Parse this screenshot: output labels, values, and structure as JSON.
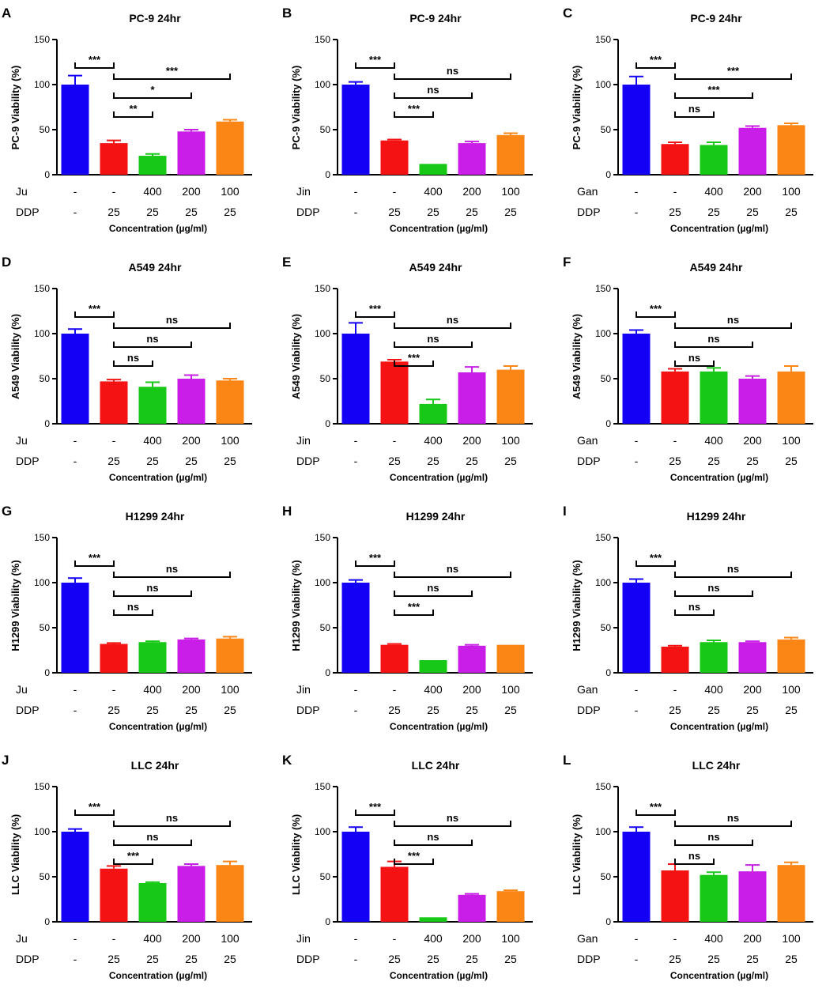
{
  "colors": {
    "bar1": "#1400f5",
    "bar2": "#f41212",
    "bar3": "#17c817",
    "bar4": "#c81ee8",
    "bar5": "#fb8515"
  },
  "chart_data": [
    {
      "panel": "A",
      "type": "bar",
      "title": "PC-9 24hr",
      "ylabel": "PC-9 Viability (%)",
      "xlabel": "Concentration (µg/ml)",
      "ylim": [
        0,
        150
      ],
      "yticks": [
        "0",
        "50",
        "100",
        "150"
      ],
      "drug": "Ju",
      "drug_values": [
        "-",
        "-",
        "400",
        "200",
        "100"
      ],
      "ddp": "DDP",
      "ddp_values": [
        "-",
        "25",
        "25",
        "25",
        "25"
      ],
      "values": [
        100,
        35,
        21,
        48,
        59
      ],
      "errors": [
        10,
        3,
        2,
        2,
        2
      ],
      "sig": [
        {
          "label": "***",
          "from": 0,
          "to": 1,
          "level": 0
        },
        {
          "label": "***",
          "from": 1,
          "to": 4,
          "level": 0
        },
        {
          "label": "*",
          "from": 1,
          "to": 3,
          "level": 1
        },
        {
          "label": "**",
          "from": 1,
          "to": 2,
          "level": 2
        }
      ]
    },
    {
      "panel": "B",
      "type": "bar",
      "title": "PC-9 24hr",
      "ylabel": "PC-9 Viability (%)",
      "xlabel": "Concentration (µg/ml)",
      "ylim": [
        0,
        150
      ],
      "yticks": [
        "0",
        "50",
        "100",
        "150"
      ],
      "drug": "Jin",
      "drug_values": [
        "-",
        "-",
        "400",
        "200",
        "100"
      ],
      "ddp": "DDP",
      "ddp_values": [
        "-",
        "25",
        "25",
        "25",
        "25"
      ],
      "values": [
        100,
        38,
        12,
        35,
        44
      ],
      "errors": [
        3,
        1,
        0,
        2,
        2
      ],
      "sig": [
        {
          "label": "***",
          "from": 0,
          "to": 1,
          "level": 0
        },
        {
          "label": "ns",
          "from": 1,
          "to": 4,
          "level": 0
        },
        {
          "label": "ns",
          "from": 1,
          "to": 3,
          "level": 1
        },
        {
          "label": "***",
          "from": 1,
          "to": 2,
          "level": 2
        }
      ]
    },
    {
      "panel": "C",
      "type": "bar",
      "title": "PC-9 24hr",
      "ylabel": "PC-9 Viability (%)",
      "xlabel": "Concentration (µg/ml)",
      "ylim": [
        0,
        150
      ],
      "yticks": [
        "0",
        "50",
        "100",
        "150"
      ],
      "drug": "Gan",
      "drug_values": [
        "-",
        "-",
        "400",
        "200",
        "100"
      ],
      "ddp": "DDP",
      "ddp_values": [
        "-",
        "25",
        "25",
        "25",
        "25"
      ],
      "values": [
        100,
        34,
        33,
        52,
        55
      ],
      "errors": [
        9,
        2,
        3,
        2,
        2
      ],
      "sig": [
        {
          "label": "***",
          "from": 0,
          "to": 1,
          "level": 0
        },
        {
          "label": "***",
          "from": 1,
          "to": 4,
          "level": 0
        },
        {
          "label": "***",
          "from": 1,
          "to": 3,
          "level": 1
        },
        {
          "label": "ns",
          "from": 1,
          "to": 2,
          "level": 2
        }
      ]
    },
    {
      "panel": "D",
      "type": "bar",
      "title": "A549 24hr",
      "ylabel": "A549 Viability (%)",
      "xlabel": "Concentration (µg/ml)",
      "ylim": [
        0,
        150
      ],
      "yticks": [
        "0",
        "50",
        "100",
        "150"
      ],
      "drug": "Ju",
      "drug_values": [
        "-",
        "-",
        "400",
        "200",
        "100"
      ],
      "ddp": "DDP",
      "ddp_values": [
        "-",
        "25",
        "25",
        "25",
        "25"
      ],
      "values": [
        100,
        47,
        41,
        50,
        48
      ],
      "errors": [
        5,
        2,
        5,
        4,
        2
      ],
      "sig": [
        {
          "label": "***",
          "from": 0,
          "to": 1,
          "level": 0
        },
        {
          "label": "ns",
          "from": 1,
          "to": 4,
          "level": 0
        },
        {
          "label": "ns",
          "from": 1,
          "to": 3,
          "level": 1
        },
        {
          "label": "ns",
          "from": 1,
          "to": 2,
          "level": 2
        }
      ]
    },
    {
      "panel": "E",
      "type": "bar",
      "title": "A549 24hr",
      "ylabel": "A549 Viability (%)",
      "xlabel": "Concentration (µg/ml)",
      "ylim": [
        0,
        150
      ],
      "yticks": [
        "0",
        "50",
        "100",
        "150"
      ],
      "drug": "Jin",
      "drug_values": [
        "-",
        "-",
        "400",
        "200",
        "100"
      ],
      "ddp": "DDP",
      "ddp_values": [
        "-",
        "25",
        "25",
        "25",
        "25"
      ],
      "values": [
        100,
        69,
        22,
        57,
        60
      ],
      "errors": [
        12,
        2,
        5,
        6,
        4
      ],
      "sig": [
        {
          "label": "***",
          "from": 0,
          "to": 1,
          "level": 0
        },
        {
          "label": "ns",
          "from": 1,
          "to": 4,
          "level": 0
        },
        {
          "label": "ns",
          "from": 1,
          "to": 3,
          "level": 1
        },
        {
          "label": "***",
          "from": 1,
          "to": 2,
          "level": 2
        }
      ]
    },
    {
      "panel": "F",
      "type": "bar",
      "title": "A549 24hr",
      "ylabel": "A549 Viability (%)",
      "xlabel": "Concentration (µg/ml)",
      "ylim": [
        0,
        150
      ],
      "yticks": [
        "0",
        "50",
        "100",
        "150"
      ],
      "drug": "Gan",
      "drug_values": [
        "-",
        "-",
        "400",
        "200",
        "100"
      ],
      "ddp": "DDP",
      "ddp_values": [
        "-",
        "25",
        "25",
        "25",
        "25"
      ],
      "values": [
        100,
        58,
        58,
        50,
        58
      ],
      "errors": [
        4,
        3,
        4,
        3,
        6
      ],
      "sig": [
        {
          "label": "***",
          "from": 0,
          "to": 1,
          "level": 0
        },
        {
          "label": "ns",
          "from": 1,
          "to": 4,
          "level": 0
        },
        {
          "label": "ns",
          "from": 1,
          "to": 3,
          "level": 1
        },
        {
          "label": "ns",
          "from": 1,
          "to": 2,
          "level": 2
        }
      ]
    },
    {
      "panel": "G",
      "type": "bar",
      "title": "H1299 24hr",
      "ylabel": "H1299 Viability (%)",
      "xlabel": "Concentration (µg/ml)",
      "ylim": [
        0,
        150
      ],
      "yticks": [
        "0",
        "50",
        "100",
        "150"
      ],
      "drug": "Ju",
      "drug_values": [
        "-",
        "-",
        "400",
        "200",
        "100"
      ],
      "ddp": "DDP",
      "ddp_values": [
        "-",
        "25",
        "25",
        "25",
        "25"
      ],
      "values": [
        100,
        32,
        34,
        37,
        38
      ],
      "errors": [
        5,
        1,
        1,
        1,
        2
      ],
      "sig": [
        {
          "label": "***",
          "from": 0,
          "to": 1,
          "level": 0
        },
        {
          "label": "ns",
          "from": 1,
          "to": 4,
          "level": 0
        },
        {
          "label": "ns",
          "from": 1,
          "to": 3,
          "level": 1
        },
        {
          "label": "ns",
          "from": 1,
          "to": 2,
          "level": 2
        }
      ]
    },
    {
      "panel": "H",
      "type": "bar",
      "title": "H1299 24hr",
      "ylabel": "H1299 Viability (%)",
      "xlabel": "Concentration (µg/ml)",
      "ylim": [
        0,
        150
      ],
      "yticks": [
        "0",
        "50",
        "100",
        "150"
      ],
      "drug": "Jin",
      "drug_values": [
        "-",
        "-",
        "400",
        "200",
        "100"
      ],
      "ddp": "DDP",
      "ddp_values": [
        "-",
        "25",
        "25",
        "25",
        "25"
      ],
      "values": [
        100,
        31,
        14,
        30,
        31
      ],
      "errors": [
        3,
        1,
        0,
        1,
        0
      ],
      "sig": [
        {
          "label": "***",
          "from": 0,
          "to": 1,
          "level": 0
        },
        {
          "label": "ns",
          "from": 1,
          "to": 4,
          "level": 0
        },
        {
          "label": "ns",
          "from": 1,
          "to": 3,
          "level": 1
        },
        {
          "label": "***",
          "from": 1,
          "to": 2,
          "level": 2
        }
      ]
    },
    {
      "panel": "I",
      "type": "bar",
      "title": "H1299 24hr",
      "ylabel": "H1299 Viability (%)",
      "xlabel": "Concentration (µg/ml)",
      "ylim": [
        0,
        150
      ],
      "yticks": [
        "0",
        "50",
        "100",
        "150"
      ],
      "drug": "Gan",
      "drug_values": [
        "-",
        "-",
        "400",
        "200",
        "100"
      ],
      "ddp": "DDP",
      "ddp_values": [
        "-",
        "25",
        "25",
        "25",
        "25"
      ],
      "values": [
        100,
        29,
        34,
        34,
        37
      ],
      "errors": [
        4,
        1,
        2,
        1,
        2
      ],
      "sig": [
        {
          "label": "***",
          "from": 0,
          "to": 1,
          "level": 0
        },
        {
          "label": "ns",
          "from": 1,
          "to": 4,
          "level": 0
        },
        {
          "label": "ns",
          "from": 1,
          "to": 3,
          "level": 1
        },
        {
          "label": "ns",
          "from": 1,
          "to": 2,
          "level": 2
        }
      ]
    },
    {
      "panel": "J",
      "type": "bar",
      "title": "LLC 24hr",
      "ylabel": "LLC Viability (%)",
      "xlabel": "Concentration (µg/ml)",
      "ylim": [
        0,
        150
      ],
      "yticks": [
        "0",
        "50",
        "100",
        "150"
      ],
      "drug": "Ju",
      "drug_values": [
        "-",
        "-",
        "400",
        "200",
        "100"
      ],
      "ddp": "DDP",
      "ddp_values": [
        "-",
        "25",
        "25",
        "25",
        "25"
      ],
      "values": [
        100,
        59,
        43,
        62,
        63
      ],
      "errors": [
        3,
        3,
        1,
        2,
        4
      ],
      "sig": [
        {
          "label": "***",
          "from": 0,
          "to": 1,
          "level": 0
        },
        {
          "label": "ns",
          "from": 1,
          "to": 4,
          "level": 0
        },
        {
          "label": "ns",
          "from": 1,
          "to": 3,
          "level": 1
        },
        {
          "label": "***",
          "from": 1,
          "to": 2,
          "level": 2
        }
      ]
    },
    {
      "panel": "K",
      "type": "bar",
      "title": "LLC 24hr",
      "ylabel": "LLC Viability (%)",
      "xlabel": "Concentration (µg/ml)",
      "ylim": [
        0,
        150
      ],
      "yticks": [
        "0",
        "50",
        "100",
        "150"
      ],
      "drug": "Jin",
      "drug_values": [
        "-",
        "-",
        "400",
        "200",
        "100"
      ],
      "ddp": "DDP",
      "ddp_values": [
        "-",
        "25",
        "25",
        "25",
        "25"
      ],
      "values": [
        100,
        61,
        5,
        30,
        34
      ],
      "errors": [
        5,
        6,
        0,
        1,
        1
      ],
      "sig": [
        {
          "label": "***",
          "from": 0,
          "to": 1,
          "level": 0
        },
        {
          "label": "ns",
          "from": 1,
          "to": 4,
          "level": 0
        },
        {
          "label": "ns",
          "from": 1,
          "to": 3,
          "level": 1
        },
        {
          "label": "***",
          "from": 1,
          "to": 2,
          "level": 2
        }
      ]
    },
    {
      "panel": "L",
      "type": "bar",
      "title": "LLC 24hr",
      "ylabel": "LLC Viability (%)",
      "xlabel": "Concentration (µg/ml)",
      "ylim": [
        0,
        150
      ],
      "yticks": [
        "0",
        "50",
        "100",
        "150"
      ],
      "drug": "Gan",
      "drug_values": [
        "-",
        "-",
        "400",
        "200",
        "100"
      ],
      "ddp": "DDP",
      "ddp_values": [
        "-",
        "25",
        "25",
        "25",
        "25"
      ],
      "values": [
        100,
        57,
        52,
        56,
        63
      ],
      "errors": [
        5,
        7,
        3,
        7,
        3
      ],
      "sig": [
        {
          "label": "***",
          "from": 0,
          "to": 1,
          "level": 0
        },
        {
          "label": "ns",
          "from": 1,
          "to": 4,
          "level": 0
        },
        {
          "label": "ns",
          "from": 1,
          "to": 3,
          "level": 1
        },
        {
          "label": "ns",
          "from": 1,
          "to": 2,
          "level": 2
        }
      ]
    }
  ]
}
